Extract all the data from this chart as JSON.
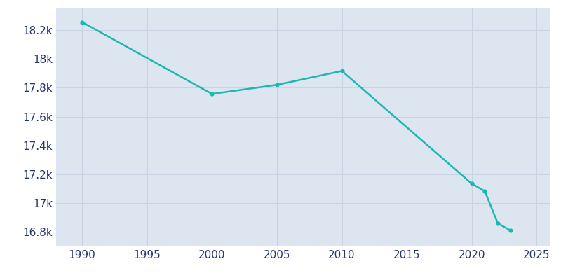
{
  "years": [
    1990,
    2000,
    2005,
    2010,
    2020,
    2021,
    2022,
    2023
  ],
  "population": [
    18255,
    17757,
    17820,
    17916,
    17135,
    17083,
    16860,
    16810
  ],
  "line_color": "#1ab8b0",
  "marker_color": "#1ab8b0",
  "fig_bg_color": "#ffffff",
  "plot_bg_color": "#dde6f0",
  "tick_label_color": "#253570",
  "xlim": [
    1988,
    2026
  ],
  "ylim": [
    16700,
    18350
  ],
  "yticks": [
    16800,
    17000,
    17200,
    17400,
    17600,
    17800,
    18000,
    18200
  ],
  "ytick_labels": [
    "16.8k",
    "17k",
    "17.2k",
    "17.4k",
    "17.6k",
    "17.8k",
    "18k",
    "18.2k"
  ],
  "xticks": [
    1990,
    1995,
    2000,
    2005,
    2010,
    2015,
    2020,
    2025
  ],
  "xtick_labels": [
    "1990",
    "1995",
    "2000",
    "2005",
    "2010",
    "2015",
    "2020",
    "2025"
  ],
  "line_width": 1.8,
  "marker_size": 3.5,
  "grid_color": "#c8d4e3",
  "grid_linewidth": 0.7,
  "tick_fontsize": 11
}
